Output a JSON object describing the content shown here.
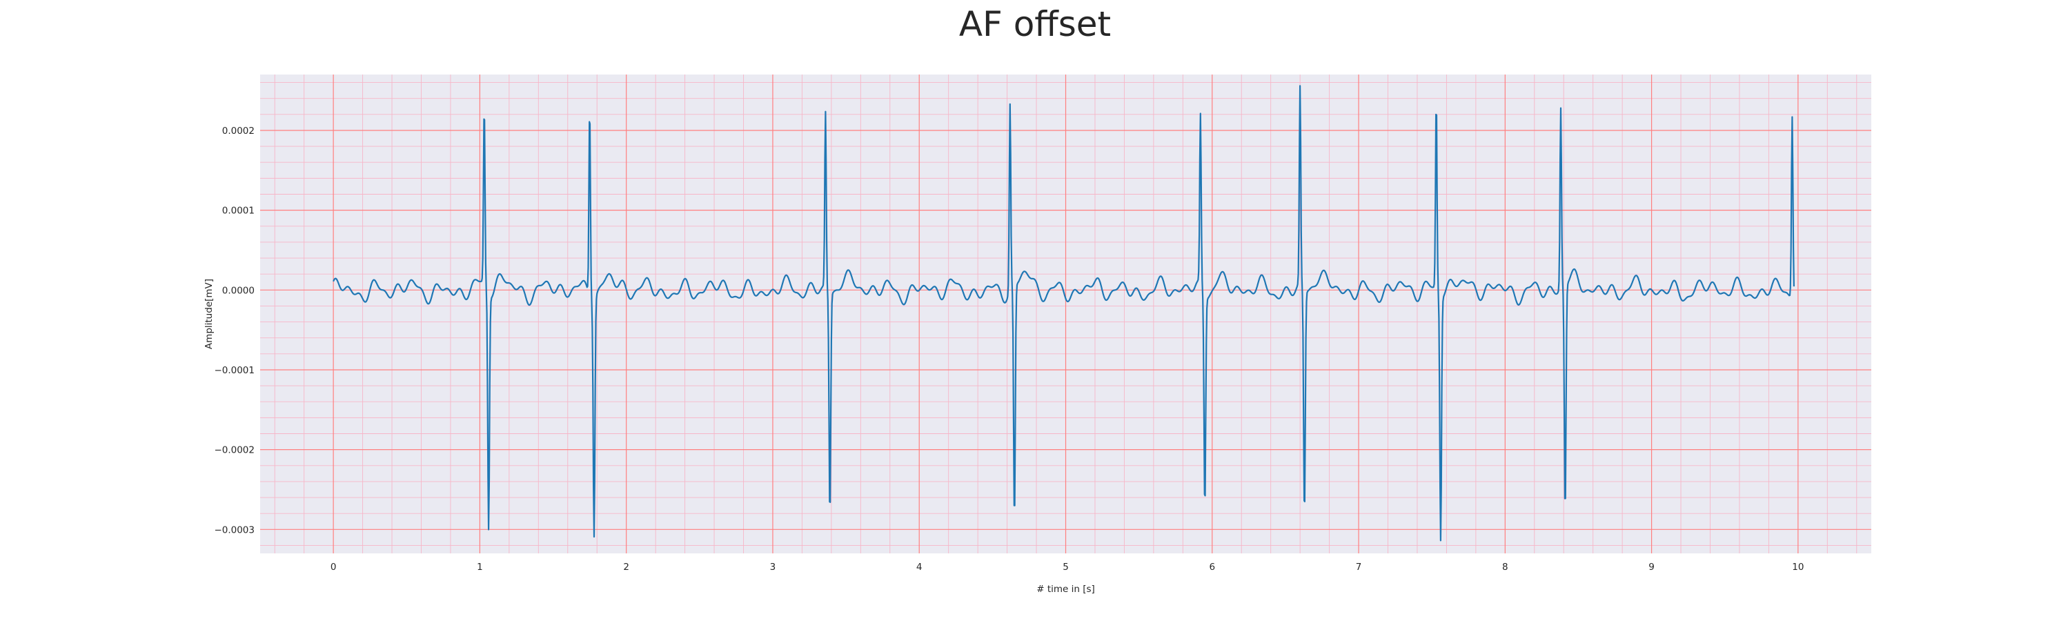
{
  "chart_data": {
    "type": "line",
    "title": "AF offset",
    "xlabel": "# time in [s]",
    "ylabel": "Amplitude[mV]",
    "xlim": [
      -0.5,
      10.5
    ],
    "ylim": [
      -0.00033,
      0.00027
    ],
    "xticks": [
      0,
      1,
      2,
      3,
      4,
      5,
      6,
      7,
      8,
      9,
      10
    ],
    "xtick_labels": [
      "0",
      "1",
      "2",
      "3",
      "4",
      "5",
      "6",
      "7",
      "8",
      "9",
      "10"
    ],
    "yticks": [
      0.0002,
      0.0001,
      0.0,
      -0.0001,
      -0.0002,
      -0.0003
    ],
    "ytick_labels": [
      "0.0002",
      "0.0001",
      "0.0000",
      "−0.0001",
      "−0.0002",
      "−0.0003"
    ],
    "grid": true,
    "minor_grid": true,
    "background_color": "#eaeaf2",
    "major_grid_color": "#ff7f7f",
    "minor_grid_color": "#f7b6c8",
    "series": [
      {
        "color": "#1f77b4",
        "qrs_complexes": [
          {
            "time": 1.03,
            "peak": 0.000222,
            "trough": -0.000295
          },
          {
            "time": 1.75,
            "peak": 0.000238,
            "trough": -0.000295
          },
          {
            "time": 3.36,
            "peak": 0.00022,
            "trough": -0.000278
          },
          {
            "time": 4.62,
            "peak": 0.000232,
            "trough": -0.000296
          },
          {
            "time": 5.92,
            "peak": 0.000212,
            "trough": -0.000265
          },
          {
            "time": 6.6,
            "peak": 0.000247,
            "trough": -0.000282
          },
          {
            "time": 7.53,
            "peak": 0.000236,
            "trough": -0.000306
          },
          {
            "time": 8.38,
            "peak": 0.000225,
            "trough": -0.000285
          },
          {
            "time": 9.96,
            "peak": 0.000226,
            "trough": -0.000256
          }
        ],
        "baseline_range": [
          -2.5e-05,
          3.5e-05
        ]
      }
    ]
  }
}
